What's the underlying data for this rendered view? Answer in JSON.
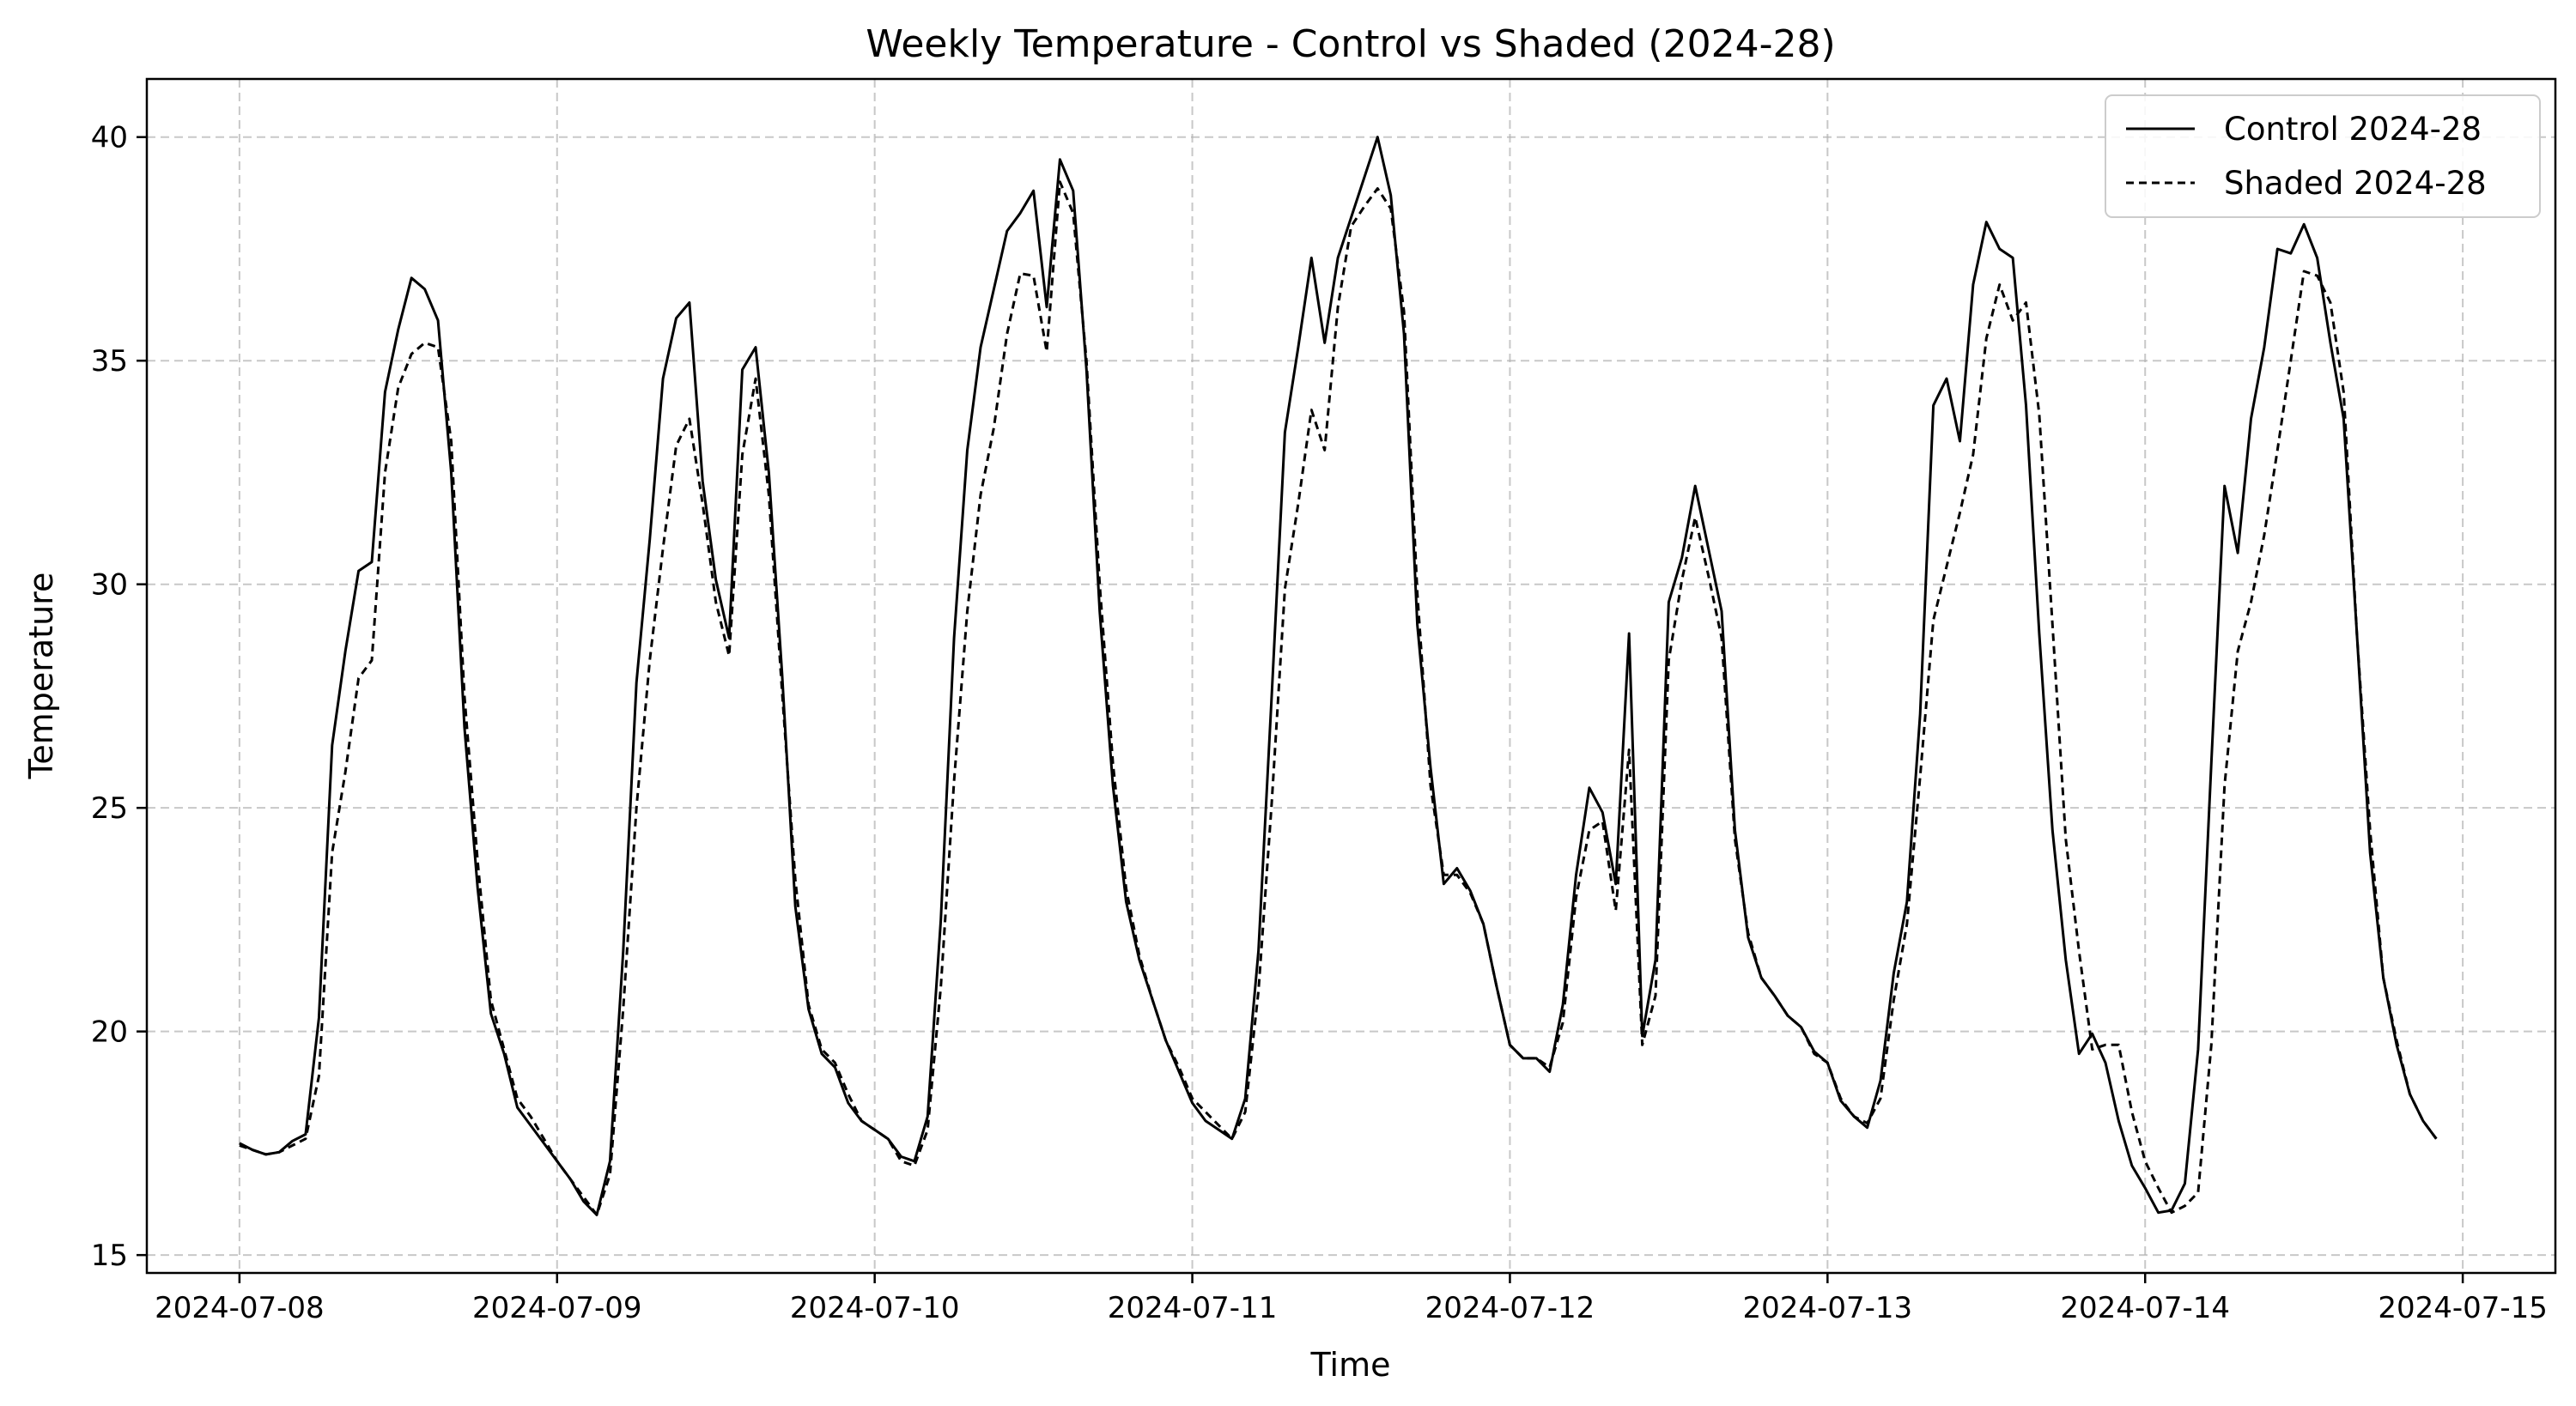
{
  "chart_data": {
    "type": "line",
    "title": "Weekly Temperature - Control vs Shaded (2024-28)",
    "xlabel": "Time",
    "ylabel": "Temperature",
    "xlim": [
      "2024-07-07 17:00",
      "2024-07-15 07:00"
    ],
    "ylim": [
      14.6,
      41.3
    ],
    "x_ticks": [
      "2024-07-08",
      "2024-07-09",
      "2024-07-10",
      "2024-07-11",
      "2024-07-12",
      "2024-07-13",
      "2024-07-14",
      "2024-07-15"
    ],
    "y_ticks": [
      15,
      20,
      25,
      30,
      35,
      40
    ],
    "grid": true,
    "legend_position": "top-right",
    "x_start": "2024-07-08 00:00",
    "x_step_hours": 1,
    "series": [
      {
        "name": "Control 2024-28",
        "style": "solid",
        "color": "#000000",
        "values": [
          17.5,
          17.35,
          17.25,
          17.3,
          17.55,
          17.7,
          20.3,
          26.4,
          28.5,
          30.3,
          30.5,
          34.3,
          35.7,
          36.85,
          36.6,
          35.9,
          32.5,
          26.8,
          23.2,
          20.4,
          19.5,
          18.3,
          17.9,
          17.5,
          17.1,
          16.7,
          16.2,
          15.9,
          17.1,
          21.8,
          27.8,
          31.0,
          34.6,
          35.95,
          36.3,
          32.3,
          30.1,
          28.8,
          34.8,
          35.3,
          32.5,
          28.0,
          22.8,
          20.5,
          19.5,
          19.2,
          18.4,
          18.0,
          17.8,
          17.6,
          17.2,
          17.1,
          18.1,
          22.5,
          28.8,
          33.0,
          35.3,
          36.6,
          37.9,
          38.3,
          38.8,
          36.2,
          39.5,
          38.8,
          34.8,
          29.4,
          25.5,
          22.9,
          21.6,
          20.7,
          19.8,
          19.1,
          18.4,
          18.0,
          17.8,
          17.6,
          18.5,
          21.8,
          27.5,
          33.4,
          35.3,
          37.3,
          35.4,
          37.3,
          38.2,
          39.1,
          40.0,
          38.7,
          35.6,
          29.1,
          25.9,
          23.3,
          23.65,
          23.15,
          22.4,
          21.0,
          19.7,
          19.4,
          19.4,
          19.1,
          20.6,
          23.5,
          25.45,
          24.9,
          23.3,
          28.9,
          19.9,
          21.6,
          29.6,
          30.6,
          32.2,
          30.8,
          29.4,
          24.5,
          22.1,
          21.2,
          20.8,
          20.35,
          20.1,
          19.55,
          19.3,
          18.45,
          18.1,
          17.85,
          18.9,
          21.3,
          22.9,
          27.1,
          34.0,
          34.6,
          33.2,
          36.7,
          38.1,
          37.5,
          37.3,
          34.0,
          28.9,
          24.5,
          21.6,
          19.5,
          19.95,
          19.3,
          18.0,
          17.0,
          16.5,
          15.95,
          16.0,
          16.6,
          19.6,
          26.0,
          32.2,
          30.7,
          33.7,
          35.3,
          37.5,
          37.4,
          38.05,
          37.3,
          35.4,
          33.7,
          28.9,
          24.0,
          21.2,
          19.7,
          18.6,
          18.0,
          17.6
        ]
      },
      {
        "name": "Shaded 2024-28",
        "style": "dashed",
        "color": "#000000",
        "values": [
          17.45,
          17.35,
          17.25,
          17.3,
          17.45,
          17.6,
          19.0,
          24.0,
          25.8,
          27.9,
          28.3,
          32.5,
          34.4,
          35.15,
          35.4,
          35.3,
          33.2,
          27.5,
          23.8,
          20.7,
          19.6,
          18.5,
          18.1,
          17.6,
          17.1,
          16.7,
          16.3,
          15.9,
          16.8,
          20.5,
          25.0,
          28.3,
          30.8,
          33.1,
          33.7,
          31.8,
          29.6,
          28.4,
          32.9,
          34.6,
          32.0,
          27.6,
          23.4,
          20.6,
          19.6,
          19.3,
          18.6,
          18.0,
          17.8,
          17.6,
          17.1,
          17.0,
          17.8,
          21.0,
          25.6,
          29.4,
          32.0,
          33.5,
          35.6,
          36.95,
          36.9,
          35.2,
          39.0,
          38.3,
          35.0,
          30.0,
          26.0,
          23.2,
          21.7,
          20.7,
          19.8,
          19.2,
          18.5,
          18.2,
          17.9,
          17.6,
          18.2,
          20.9,
          25.1,
          29.9,
          31.8,
          33.9,
          33.0,
          36.2,
          38.0,
          38.45,
          38.85,
          38.4,
          36.1,
          29.8,
          25.5,
          23.5,
          23.5,
          23.1,
          22.4,
          21.0,
          19.7,
          19.4,
          19.4,
          19.2,
          20.2,
          23.0,
          24.5,
          24.7,
          22.7,
          26.3,
          19.7,
          20.8,
          28.3,
          30.1,
          31.5,
          30.2,
          28.8,
          24.3,
          22.2,
          21.2,
          20.8,
          20.35,
          20.1,
          19.5,
          19.3,
          18.5,
          18.1,
          17.95,
          18.5,
          20.7,
          22.4,
          25.7,
          29.2,
          30.4,
          31.6,
          32.9,
          35.5,
          36.7,
          35.9,
          36.3,
          33.8,
          29.1,
          24.3,
          21.8,
          19.6,
          19.7,
          19.7,
          18.2,
          17.1,
          16.5,
          15.95,
          16.1,
          16.4,
          19.7,
          25.5,
          28.5,
          29.6,
          31.1,
          33.0,
          35.0,
          37.0,
          36.9,
          36.3,
          34.3,
          28.9,
          24.5,
          21.2,
          19.8,
          18.6,
          18.0,
          17.6
        ]
      }
    ]
  }
}
